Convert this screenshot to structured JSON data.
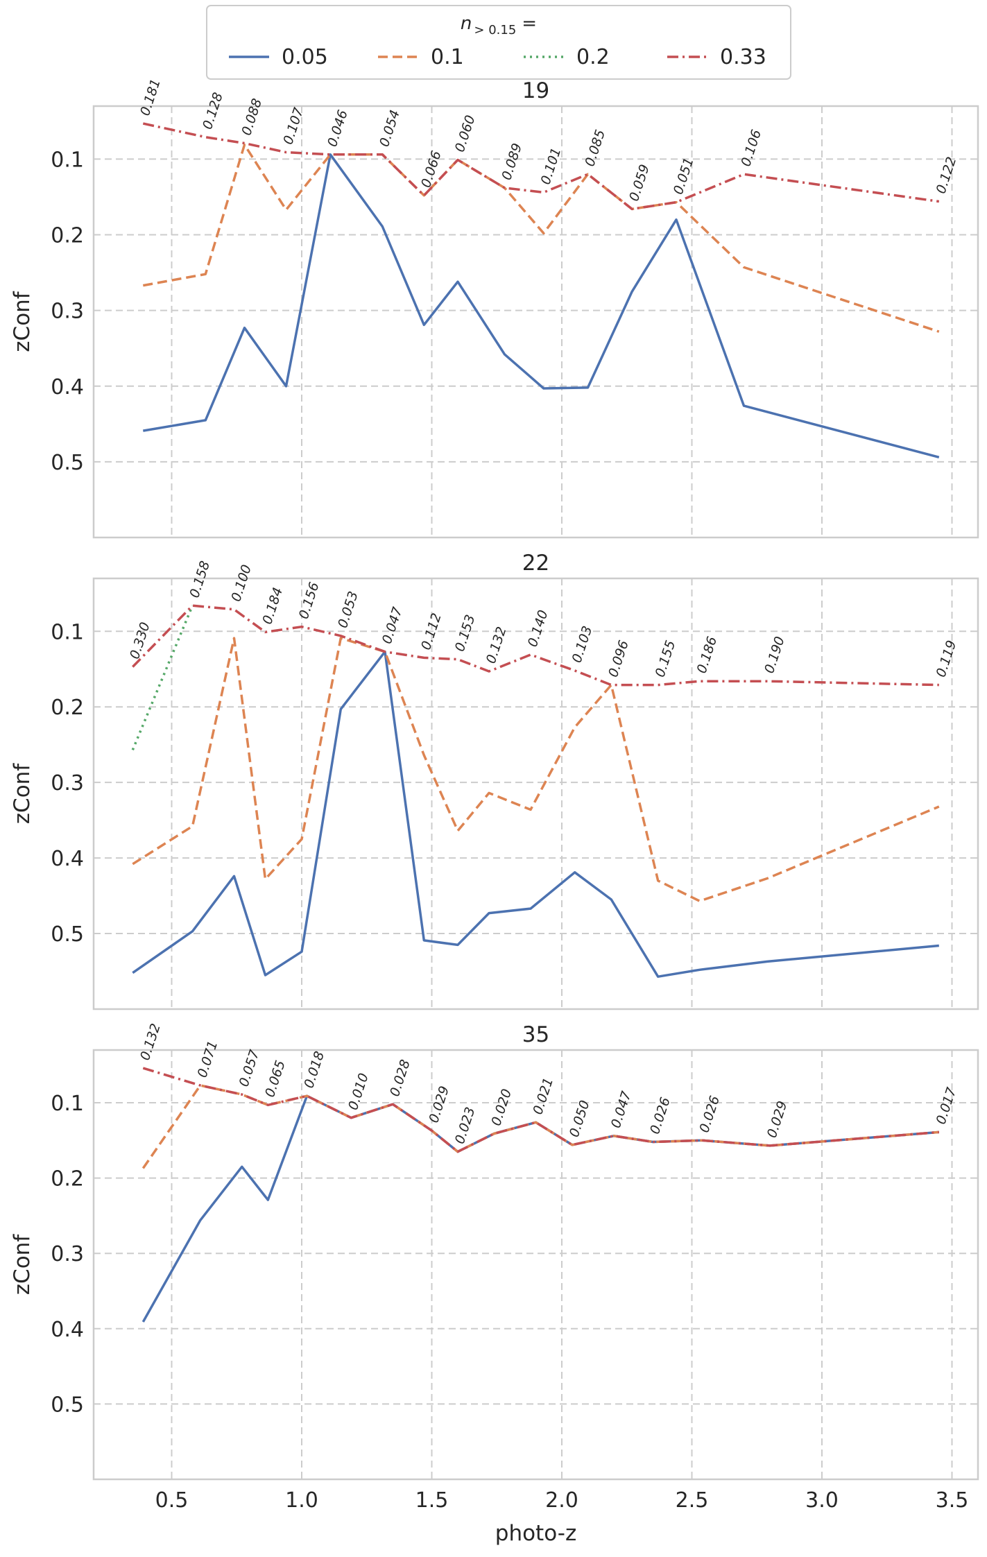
{
  "legend": {
    "title_n": "n",
    "title_sub": "> 0.15",
    "title_eq": "=",
    "location": "top-center",
    "entries": [
      {
        "label": "0.05",
        "color": "#4c72b0",
        "style": "solid"
      },
      {
        "label": "0.1",
        "color": "#dd8452",
        "style": "dashed"
      },
      {
        "label": "0.2",
        "color": "#55a868",
        "style": "dotted"
      },
      {
        "label": "0.33",
        "color": "#c44e52",
        "style": "dashdot"
      }
    ]
  },
  "chart_data": [
    {
      "type": "line",
      "title": "19",
      "xlabel": "",
      "ylabel": "zConf",
      "xlim": [
        0.2,
        3.6
      ],
      "ylim": [
        0.6,
        0.03
      ],
      "y_inverted": true,
      "grid": true,
      "xticks": [],
      "yticks": [
        "0.1",
        "0.2",
        "0.3",
        "0.4",
        "0.5"
      ],
      "series": [
        {
          "name": "0.05",
          "x": [
            0.39,
            0.63,
            0.78,
            0.94,
            1.11,
            1.31,
            1.47,
            1.6,
            1.78,
            1.93,
            2.1,
            2.27,
            2.44,
            2.7,
            3.45
          ],
          "y": [
            0.459,
            0.445,
            0.323,
            0.4,
            0.094,
            0.189,
            0.319,
            0.262,
            0.358,
            0.403,
            0.402,
            0.275,
            0.18,
            0.426,
            0.494
          ]
        },
        {
          "name": "0.1",
          "x": [
            0.39,
            0.63,
            0.78,
            0.94,
            1.11,
            1.31,
            1.47,
            1.6,
            1.78,
            1.93,
            2.1,
            2.27,
            2.44,
            2.7,
            3.45
          ],
          "y": [
            0.267,
            0.252,
            0.081,
            0.167,
            0.094,
            0.094,
            0.148,
            0.101,
            0.138,
            0.198,
            0.12,
            0.166,
            0.157,
            0.243,
            0.328
          ]
        },
        {
          "name": "0.33",
          "x": [
            0.39,
            0.63,
            0.78,
            0.94,
            1.11,
            1.31,
            1.47,
            1.6,
            1.78,
            1.93,
            2.1,
            2.27,
            2.44,
            2.7,
            3.45
          ],
          "y": [
            0.053,
            0.071,
            0.079,
            0.091,
            0.094,
            0.094,
            0.148,
            0.101,
            0.138,
            0.144,
            0.12,
            0.166,
            0.157,
            0.12,
            0.156
          ]
        }
      ],
      "annotations": [
        "0.181",
        "0.128",
        "0.088",
        "0.107",
        "0.046",
        "0.054",
        "0.066",
        "0.060",
        "0.089",
        "0.101",
        "0.085",
        "0.059",
        "0.051",
        "0.106",
        "0.122"
      ]
    },
    {
      "type": "line",
      "title": "22",
      "xlabel": "",
      "ylabel": "zConf",
      "xlim": [
        0.2,
        3.6
      ],
      "ylim": [
        0.6,
        0.03
      ],
      "y_inverted": true,
      "grid": true,
      "xticks": [],
      "yticks": [
        "0.1",
        "0.2",
        "0.3",
        "0.4",
        "0.5"
      ],
      "series": [
        {
          "name": "0.05",
          "x": [
            0.35,
            0.58,
            0.74,
            0.86,
            1.0,
            1.15,
            1.32,
            1.47,
            1.6,
            1.72,
            1.88,
            2.05,
            2.19,
            2.37,
            2.53,
            2.79,
            3.45
          ],
          "y": [
            0.552,
            0.497,
            0.424,
            0.555,
            0.524,
            0.203,
            0.127,
            0.509,
            0.515,
            0.473,
            0.467,
            0.419,
            0.455,
            0.557,
            0.548,
            0.537,
            0.516
          ]
        },
        {
          "name": "0.1",
          "x": [
            0.35,
            0.58,
            0.74,
            0.86,
            1.0,
            1.15,
            1.32,
            1.47,
            1.6,
            1.72,
            1.88,
            2.05,
            2.19,
            2.37,
            2.53,
            2.79,
            3.45
          ],
          "y": [
            0.408,
            0.358,
            0.109,
            0.428,
            0.375,
            0.109,
            0.127,
            0.264,
            0.364,
            0.314,
            0.336,
            0.227,
            0.171,
            0.43,
            0.457,
            0.427,
            0.332
          ]
        },
        {
          "name": "0.2",
          "x": [
            0.35,
            0.58
          ],
          "y": [
            0.257,
            0.066
          ]
        },
        {
          "name": "0.33",
          "x": [
            0.35,
            0.58,
            0.74,
            0.86,
            1.0,
            1.15,
            1.32,
            1.47,
            1.6,
            1.72,
            1.88,
            2.05,
            2.19,
            2.37,
            2.53,
            2.79,
            3.45
          ],
          "y": [
            0.147,
            0.066,
            0.071,
            0.101,
            0.094,
            0.106,
            0.127,
            0.135,
            0.137,
            0.153,
            0.131,
            0.152,
            0.171,
            0.171,
            0.166,
            0.166,
            0.171
          ]
        }
      ],
      "annotations": [
        "0.330",
        "0.158",
        "0.100",
        "0.184",
        "0.156",
        "0.053",
        "0.047",
        "0.112",
        "0.153",
        "0.132",
        "0.140",
        "0.103",
        "0.096",
        "0.155",
        "0.186",
        "0.190",
        "0.119"
      ]
    },
    {
      "type": "line",
      "title": "35",
      "xlabel": "photo-z",
      "ylabel": "zConf",
      "xlim": [
        0.2,
        3.6
      ],
      "ylim": [
        0.6,
        0.03
      ],
      "y_inverted": true,
      "grid": true,
      "xticks": [
        "0.5",
        "1.0",
        "1.5",
        "2.0",
        "2.5",
        "3.0",
        "3.5"
      ],
      "yticks": [
        "0.1",
        "0.2",
        "0.3",
        "0.4",
        "0.5"
      ],
      "series": [
        {
          "name": "0.05",
          "x": [
            0.39,
            0.61,
            0.77,
            0.87,
            1.02,
            1.19,
            1.35,
            1.5,
            1.6,
            1.74,
            1.9,
            2.04,
            2.2,
            2.35,
            2.54,
            2.8,
            3.45
          ],
          "y": [
            0.391,
            0.256,
            0.185,
            0.229,
            0.091,
            0.12,
            0.102,
            0.137,
            0.165,
            0.141,
            0.126,
            0.156,
            0.144,
            0.152,
            0.15,
            0.157,
            0.139
          ]
        },
        {
          "name": "0.1",
          "x": [
            0.39,
            0.61,
            0.77,
            0.87,
            1.02,
            1.19,
            1.35,
            1.5,
            1.6,
            1.74,
            1.9,
            2.04,
            2.2,
            2.35,
            2.54,
            2.8,
            3.45
          ],
          "y": [
            0.187,
            0.077,
            0.089,
            0.103,
            0.091,
            0.12,
            0.102,
            0.137,
            0.165,
            0.141,
            0.126,
            0.156,
            0.144,
            0.152,
            0.15,
            0.157,
            0.139
          ]
        },
        {
          "name": "0.33",
          "x": [
            0.39,
            0.61,
            0.77,
            0.87,
            1.02,
            1.19,
            1.35,
            1.5,
            1.6,
            1.74,
            1.9,
            2.04,
            2.2,
            2.35,
            2.54,
            2.8,
            3.45
          ],
          "y": [
            0.054,
            0.077,
            0.089,
            0.103,
            0.091,
            0.12,
            0.102,
            0.137,
            0.165,
            0.141,
            0.126,
            0.156,
            0.144,
            0.152,
            0.15,
            0.157,
            0.139
          ]
        }
      ],
      "annotations": [
        "0.132",
        "0.071",
        "0.057",
        "0.065",
        "0.018",
        "0.010",
        "0.028",
        "0.029",
        "0.023",
        "0.020",
        "0.021",
        "0.050",
        "0.047",
        "0.026",
        "0.026",
        "0.029",
        "0.017"
      ]
    }
  ]
}
